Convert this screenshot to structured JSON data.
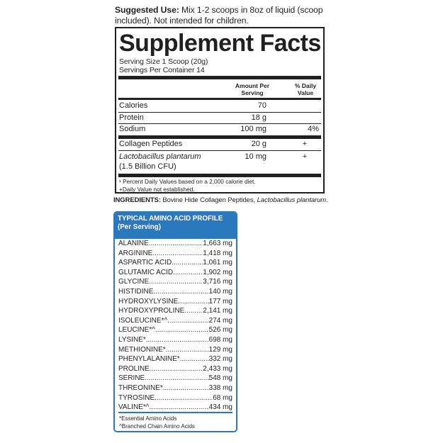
{
  "suggested_use": {
    "label": "Suggested Use:",
    "text": " Mix 1-2 scoops in 8oz of liquid (scoop included). Not intended for children."
  },
  "facts": {
    "title": "Supplement Facts",
    "serving_size": "Serving Size 1 Scoop (20g)",
    "servings_per_container": "Servings Per Container 14",
    "col_amount": "Amount Per Serving",
    "col_dv": "% Daily Value",
    "rows": [
      {
        "name": "Calories",
        "amount": "70",
        "dv": ""
      },
      {
        "name": "Protein",
        "amount": "18 g",
        "dv": ""
      },
      {
        "name": "Sodium",
        "amount": "100 mg",
        "dv": "4%"
      },
      {
        "name": "Collagen Peptides",
        "amount": "20 g",
        "dv": "+"
      },
      {
        "name": "Lactobacillus plantarum",
        "name2": "(1.5 Billion CFU)",
        "amount": "10 mg",
        "dv": "+"
      }
    ],
    "footnote1": "¹ Percent Daily Values based on a 2,000 calorie diet.",
    "footnote2": "+Daily Value not established."
  },
  "ingredients": {
    "label": "INGREDIENTS:",
    "text": " Bovine Hide Collagen Peptides, ",
    "italic": "Lactobacillus plantarum",
    "end": "."
  },
  "amino": {
    "title": "TYPICAL AMINO ACID PROFILE",
    "subtitle": "(Per Serving)",
    "items": [
      {
        "name": "ALANINE",
        "value": "1,663 mg"
      },
      {
        "name": "ARGININE",
        "value": "1,418 mg"
      },
      {
        "name": "ASPARTIC ACID",
        "value": "1,061 mg"
      },
      {
        "name": "GLUTAMIC ACID",
        "value": "1,902 mg"
      },
      {
        "name": "GLYCINE",
        "value": "3,716 mg"
      },
      {
        "name": "HISTIDINE",
        "value": "140 mg"
      },
      {
        "name": "HYDROXYLYSINE",
        "value": "177 mg"
      },
      {
        "name": "HYDROXYPROLINE",
        "value": "2,141 mg"
      },
      {
        "name": "ISOLEUCINE*^",
        "value": "274 mg"
      },
      {
        "name": "LEUCINE*^",
        "value": "526 mg"
      },
      {
        "name": "LYSINE*",
        "value": "698 mg"
      },
      {
        "name": "METHIONINE*",
        "value": "129 mg"
      },
      {
        "name": "PHENYLALANINE*",
        "value": "332 mg"
      },
      {
        "name": "PROLINE",
        "value": "2,433 mg"
      },
      {
        "name": "SERINE",
        "value": "548 mg"
      },
      {
        "name": "THREONINE*",
        "value": "338 mg"
      },
      {
        "name": "TYROSINE",
        "value": "68 mg"
      },
      {
        "name": "VALINE*^",
        "value": "434 mg"
      }
    ],
    "footnote1": "*Essential Amino Acids",
    "footnote2": "^Branched Chain Amino Acids"
  },
  "colors": {
    "accent": "#2a79bf",
    "text": "#231f20"
  }
}
